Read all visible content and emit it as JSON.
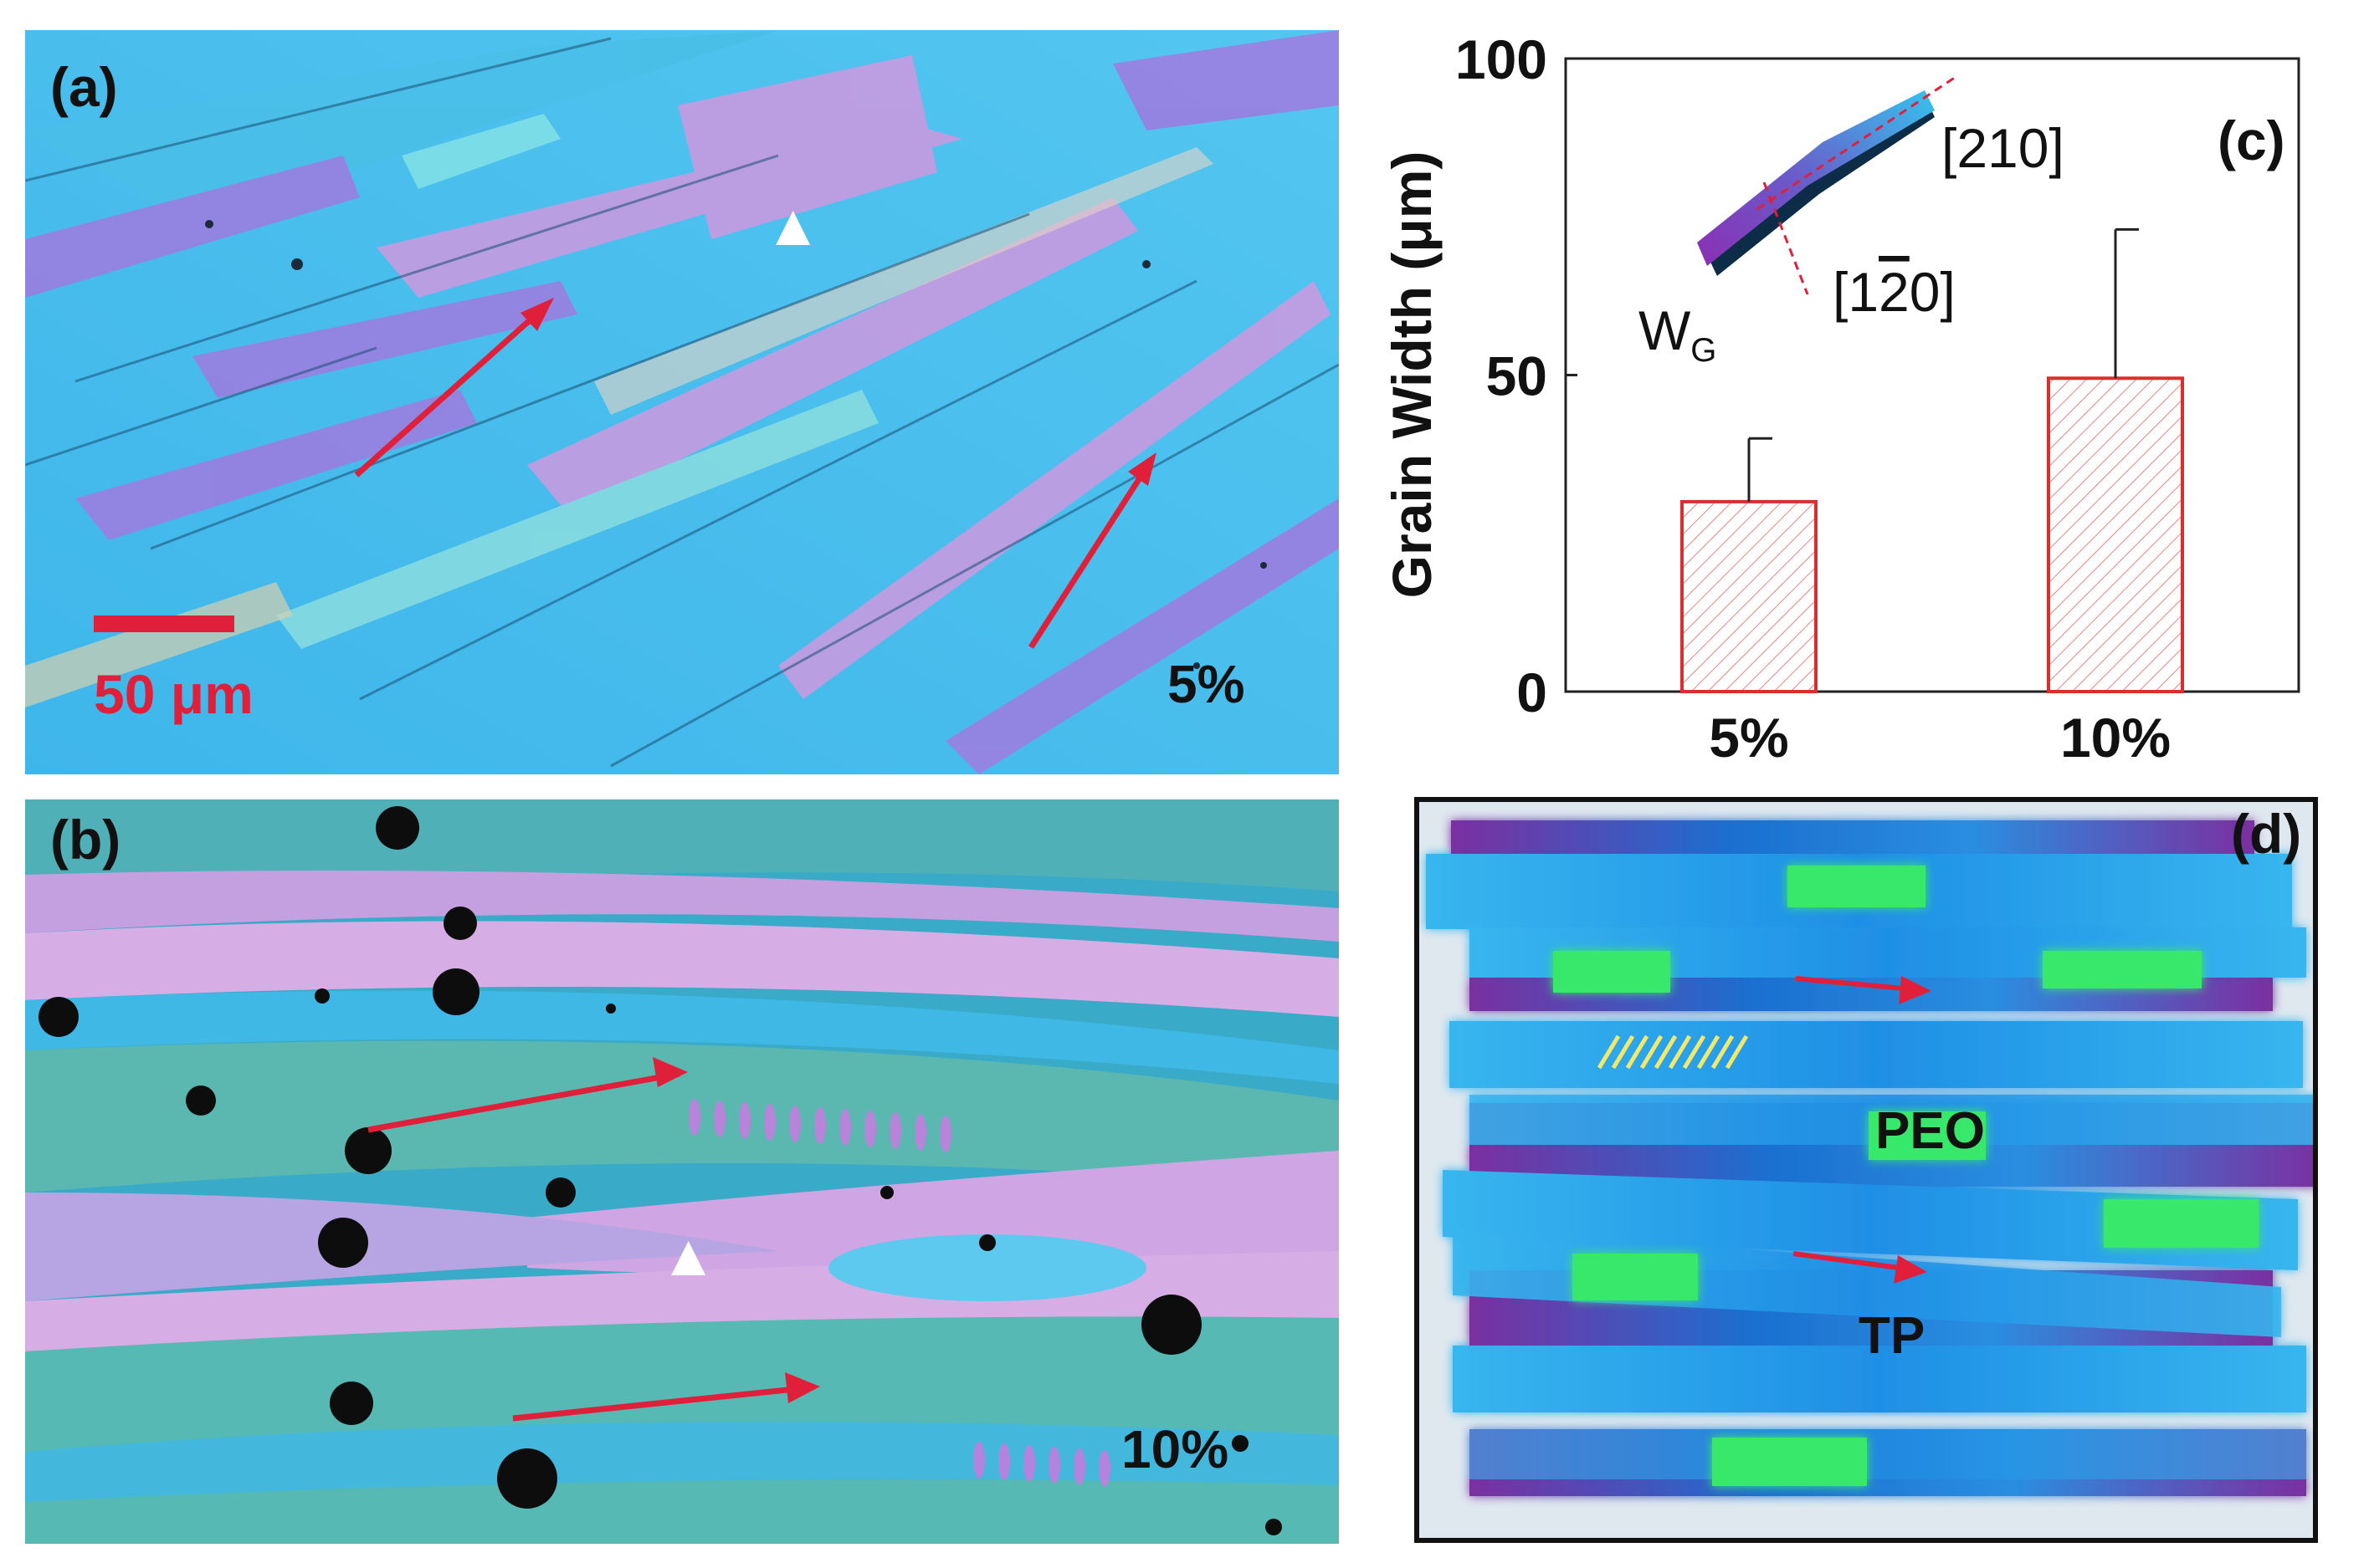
{
  "panel_a": {
    "label": "(a)",
    "concentration": "5%",
    "scale_bar": "50 μm",
    "marker": "▲"
  },
  "panel_b": {
    "label": "(b)",
    "concentration": "10%",
    "marker": "▲"
  },
  "panel_c": {
    "label": "(c)",
    "inset": {
      "dir1": "[210]",
      "dir2": "[1",
      "dir2_bar": "2",
      "dir2_end": "0]",
      "width_label": "W",
      "width_sub": "G"
    }
  },
  "panel_d": {
    "label": "(d)",
    "peo": "PEO",
    "tp": "TP"
  },
  "chart_data": {
    "type": "bar",
    "title": "",
    "xlabel": "",
    "ylabel": "Grain Width (μm)",
    "ylim": [
      0,
      100
    ],
    "yticks": [
      "0",
      "50",
      "100"
    ],
    "categories": [
      "5%",
      "10%"
    ],
    "values": [
      30,
      49.5
    ],
    "error_upper": [
      10,
      23.5
    ],
    "bar_color": "#d9302f"
  },
  "colors": {
    "arrow": "#e0203a",
    "cyan": "#2fb3e8",
    "purple": "#7b3b9c",
    "green": "#39e86a"
  }
}
